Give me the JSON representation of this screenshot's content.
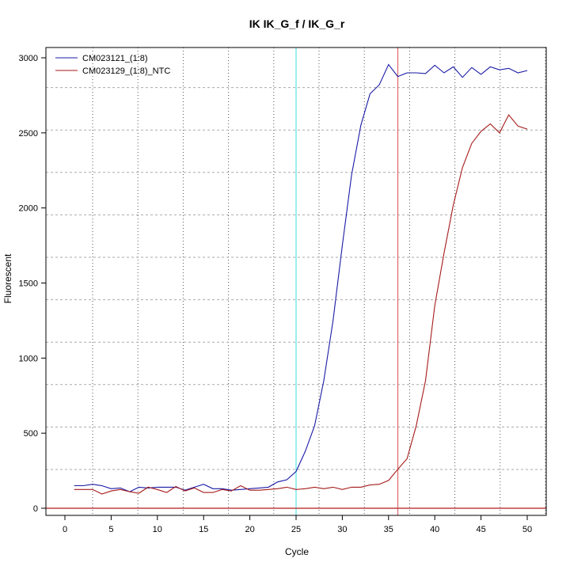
{
  "chart_data": {
    "type": "line",
    "title": "IK  IK_G_f / IK_G_r",
    "xlabel": "Cycle",
    "ylabel": "Fluorescent",
    "xlim": [
      -2,
      52
    ],
    "ylim": [
      -30,
      3090
    ],
    "x_ticks": [
      0,
      5,
      10,
      15,
      20,
      25,
      30,
      35,
      40,
      45,
      50
    ],
    "y_ticks": [
      0,
      500,
      1000,
      1500,
      2000,
      2500,
      3000
    ],
    "grid": true,
    "legend_position": "top-left",
    "x": [
      1,
      2,
      3,
      4,
      5,
      6,
      7,
      8,
      9,
      10,
      11,
      12,
      13,
      14,
      15,
      16,
      17,
      18,
      19,
      20,
      21,
      22,
      23,
      24,
      25,
      26,
      27,
      28,
      29,
      30,
      31,
      32,
      33,
      34,
      35,
      36,
      37,
      38,
      39,
      40,
      41,
      42,
      43,
      44,
      45,
      46,
      47,
      48,
      49,
      50
    ],
    "series": [
      {
        "name": "CM023121_(1:8)",
        "color": "#1a1aa6",
        "values": [
          150,
          150,
          160,
          150,
          130,
          135,
          110,
          140,
          135,
          140,
          140,
          140,
          120,
          140,
          160,
          130,
          130,
          120,
          125,
          130,
          135,
          140,
          175,
          190,
          245,
          380,
          550,
          850,
          1250,
          1750,
          2220,
          2550,
          2760,
          2820,
          2955,
          2875,
          2900,
          2900,
          2895,
          2950,
          2900,
          2940,
          2870,
          2935,
          2890,
          2940,
          2920,
          2930,
          2900,
          2915
        ]
      },
      {
        "name": "CM023129_(1:8)_NTC",
        "color": "#a61a1a",
        "values": [
          125,
          125,
          125,
          95,
          115,
          125,
          110,
          100,
          140,
          125,
          105,
          145,
          115,
          135,
          105,
          105,
          125,
          115,
          150,
          120,
          120,
          125,
          130,
          140,
          125,
          130,
          140,
          130,
          140,
          125,
          140,
          140,
          155,
          160,
          185,
          260,
          330,
          550,
          850,
          1350,
          1700,
          2020,
          2270,
          2430,
          2510,
          2560,
          2500,
          2620,
          2545,
          2525
        ]
      }
    ],
    "reference_lines": [
      {
        "orientation": "vertical",
        "value": 25,
        "color": "#66e8e8"
      },
      {
        "orientation": "vertical",
        "value": 36,
        "color": "#e07070"
      },
      {
        "orientation": "horizontal",
        "value": 0,
        "color": "#c04040"
      }
    ]
  }
}
